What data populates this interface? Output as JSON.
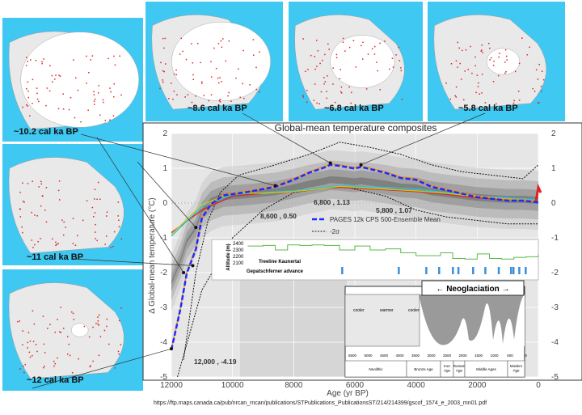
{
  "maps": [
    {
      "label": "~10.2 cal ka BP"
    },
    {
      "label": "~8.6 cal ka BP"
    },
    {
      "label": "~6.8 cal ka BP"
    },
    {
      "label": "~5.8 cal ka BP"
    },
    {
      "label": "~11 cal ka BP"
    },
    {
      "label": "~12 cal ka BP"
    }
  ],
  "colors": {
    "ocean": "#3fc8f2",
    "ice": "#ffffff",
    "land": "#e9e9e9",
    "sites": "#e02020",
    "mean": "#1a2cff",
    "orange": "#ff8a1c",
    "red": "#e02020",
    "cyan": "#22c8d8",
    "yellow": "#c8c820",
    "treeline": "#5cb84a",
    "advance": "#3a8fd8"
  },
  "chart_data": {
    "type": "line",
    "title": "Global-mean temperature composites",
    "xlabel": "Age (yr BP)",
    "ylabel": "Δ Global-mean temperature (°C)",
    "xlim": [
      12000,
      0
    ],
    "ylim": [
      -5,
      2
    ],
    "xticks": [
      "12000",
      "10000",
      "8000",
      "6000",
      "4000",
      "2000",
      "0"
    ],
    "yticks": [
      "2",
      "1",
      "0",
      "-1",
      "-2",
      "-3",
      "-4",
      "-5"
    ],
    "grid": true,
    "legend": {
      "placement": "center",
      "entries": [
        "PAGES 12k CPS 500-Ensemble Mean",
        "-2σ"
      ]
    },
    "series": [
      {
        "name": "PAGES 12k CPS 500-Ensemble Mean",
        "x": [
          12000,
          11700,
          11500,
          11200,
          11000,
          10700,
          10300,
          9500,
          8600,
          8000,
          7500,
          7000,
          6800,
          6500,
          6000,
          5800,
          5000,
          4500,
          4000,
          3500,
          3000,
          2500,
          2000,
          1500,
          1000,
          500,
          0
        ],
        "y": [
          -4.19,
          -3.0,
          -2.0,
          -1.3,
          -0.4,
          0.0,
          0.25,
          0.35,
          0.5,
          0.7,
          0.9,
          1.05,
          1.13,
          1.1,
          1.02,
          1.07,
          0.9,
          0.75,
          0.7,
          0.5,
          0.4,
          0.3,
          0.2,
          0.15,
          0.1,
          0.1,
          0.05
        ]
      },
      {
        "x": [
          12000,
          11000,
          10000,
          9000,
          8000,
          7000,
          6500,
          5000,
          4000,
          3000,
          2000,
          1000,
          0
        ],
        "y": [
          -0.85,
          -0.2,
          0.2,
          0.28,
          0.32,
          0.42,
          0.45,
          0.38,
          0.33,
          0.25,
          0.15,
          0.1,
          0.05
        ]
      },
      {
        "x": [
          12000,
          11000,
          10000,
          9000,
          8000,
          7000,
          6500,
          5000,
          4000,
          3000,
          2000,
          1000,
          0
        ],
        "y": [
          -0.95,
          -0.1,
          0.25,
          0.3,
          0.35,
          0.45,
          0.5,
          0.45,
          0.4,
          0.3,
          0.2,
          0.15,
          0.1
        ]
      },
      {
        "x": [
          12000,
          11000,
          10000,
          9000,
          8000,
          7000,
          6500,
          5000,
          4000,
          3000,
          2000,
          1000,
          0
        ],
        "y": [
          -0.9,
          -0.05,
          0.3,
          0.28,
          0.33,
          0.42,
          0.48,
          0.4,
          0.35,
          0.28,
          0.18,
          0.12,
          0.05
        ]
      }
    ],
    "sigma_upper": {
      "x": [
        11600,
        11200,
        10800,
        10400,
        9800,
        8600,
        7500,
        6500,
        5500,
        4500,
        3500,
        2500,
        1500,
        500,
        0
      ],
      "y": [
        -4.5,
        -2.0,
        -0.5,
        0.3,
        0.8,
        1.1,
        1.4,
        1.75,
        1.6,
        1.4,
        1.1,
        0.9,
        0.8,
        0.7,
        1.1
      ]
    },
    "sigma_lower": {
      "x": [
        11800,
        11000,
        10000,
        9000,
        8000,
        6500,
        5000,
        4000,
        3000,
        2000,
        1000,
        0
      ],
      "y": [
        -5.0,
        -2.5,
        -1.0,
        -0.2,
        0.3,
        0.5,
        0.2,
        -0.2,
        -0.4,
        -0.5,
        -0.6,
        -0.6
      ]
    },
    "annotations": [
      {
        "text": "12,000 , -4.19",
        "x": 12000,
        "y": -4.19
      },
      {
        "text": "8,600 , 0.50",
        "x": 8600,
        "y": 0.5
      },
      {
        "text": "6,800 , 1.13",
        "x": 6800,
        "y": 1.13
      },
      {
        "text": "5,800 , 1.07",
        "x": 5800,
        "y": 1.07
      }
    ],
    "treeline": {
      "ylabel": "Altitude (m)",
      "label": "Treeline Kaunertal",
      "yticks": [
        "2400",
        "2300",
        "2200",
        "2100"
      ],
      "x": [
        9500,
        9000,
        8600,
        8200,
        7800,
        7400,
        7000,
        6500,
        6000,
        5500,
        5000,
        4500,
        4000,
        3600,
        3200,
        2800,
        2400,
        2000,
        1600,
        1200,
        800,
        400,
        0
      ],
      "y": [
        2370,
        2380,
        2300,
        2390,
        2380,
        2390,
        2380,
        2300,
        2370,
        2300,
        2320,
        2250,
        2200,
        2200,
        2250,
        2150,
        2140,
        2230,
        2150,
        2140,
        2170,
        2180,
        2220
      ]
    },
    "glacier_advance": {
      "label": "Gepatschferner advance",
      "ages": [
        6420,
        4570,
        3670,
        3250,
        2800,
        2620,
        2140,
        1740,
        1300,
        900,
        820,
        630,
        420
      ]
    },
    "neoglaciation": "Neoglaciation",
    "inset": {
      "scale": [
        "5500",
        "5000",
        "4500",
        "4000",
        "3500",
        "3000",
        "2500",
        "2000",
        "1500",
        "1000",
        "500",
        "0"
      ],
      "periods": [
        "Neolithic",
        "Bronze Age",
        "Iron Age",
        "Roman Age",
        "Middle Ages",
        "Modern Age"
      ],
      "phases": [
        "cooler",
        "warmer",
        "cooler"
      ]
    }
  },
  "source_url": "https://ftp.maps.canada.ca/pub/nrcan_rncan/publications/STPublications_PublicationsST/214/214399/gscof_1574_e_2003_mn01.pdf"
}
